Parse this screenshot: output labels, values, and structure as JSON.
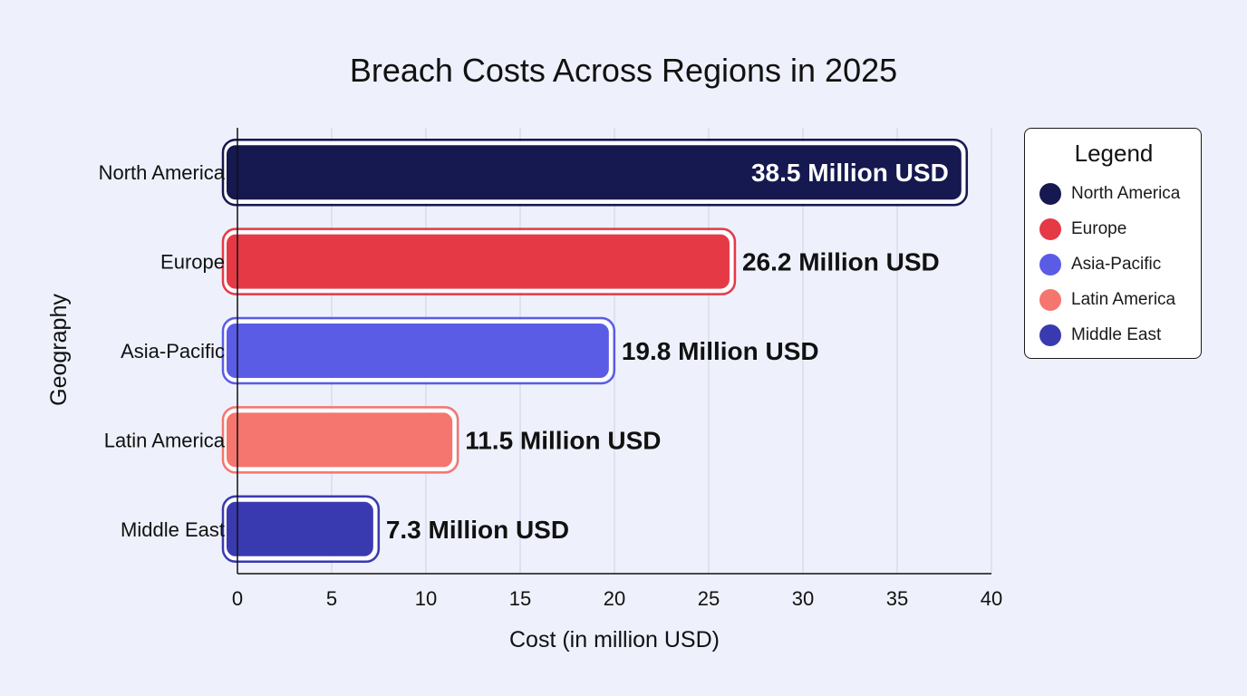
{
  "chart_data": {
    "type": "bar",
    "orientation": "horizontal",
    "title": "Breach Costs Across Regions in 2025",
    "xlabel": "Cost (in million USD)",
    "ylabel": "Geography",
    "xlim": [
      0,
      40
    ],
    "x_ticks": [
      "0",
      "5",
      "10",
      "15",
      "20",
      "25",
      "30",
      "35",
      "40"
    ],
    "grid": "vertical",
    "legend_placement": "right",
    "categories": [
      "North America",
      "Europe",
      "Asia-Pacific",
      "Latin America",
      "Middle East"
    ],
    "values": [
      38.5,
      26.2,
      19.8,
      11.5,
      7.3
    ],
    "data_labels": [
      "38.5 Million USD",
      "26.2 Million USD",
      "19.8 Million USD",
      "11.5 Million USD",
      "7.3 Million USD"
    ],
    "colors": [
      "#161850",
      "#e63946",
      "#5a5ce6",
      "#f5756f",
      "#3a3ab0"
    ]
  },
  "legend": {
    "title": "Legend",
    "items": [
      "North America",
      "Europe",
      "Asia-Pacific",
      "Latin America",
      "Middle East"
    ]
  }
}
